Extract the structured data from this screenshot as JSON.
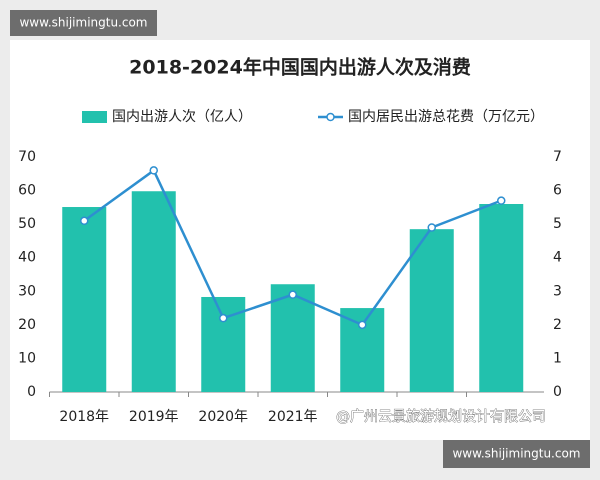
{
  "chart_data": {
    "type": "bar-line",
    "title": "2018-2024年中国国内出游人次及消费",
    "categories": [
      "2018年",
      "2019年",
      "2020年",
      "2021年",
      null,
      null,
      null
    ],
    "series": [
      {
        "name": "国内出游人次（亿人）",
        "type": "bar",
        "color": "#22c1ad",
        "values": [
          55.1,
          59.8,
          28.3,
          32.1,
          25.0,
          48.5,
          56.0
        ]
      },
      {
        "name": "国内居民出游总花费（万亿元）",
        "type": "line",
        "axis": "y2",
        "color": "#2e8fd0",
        "values": [
          5.1,
          6.6,
          2.2,
          2.9,
          2.0,
          4.9,
          5.7
        ]
      }
    ],
    "ylim": [
      0,
      70
    ],
    "yticks": [
      0,
      10,
      20,
      30,
      40,
      50,
      60,
      70
    ],
    "y2lim": [
      0,
      7
    ],
    "y2ticks": [
      0,
      1,
      2,
      3,
      4,
      5,
      6,
      7
    ],
    "legend": "top",
    "watermarks": [
      "www.shijimingtu.com",
      "@广州云景旅游规划设计有限公司",
      "www.shijimingtu.com"
    ]
  }
}
